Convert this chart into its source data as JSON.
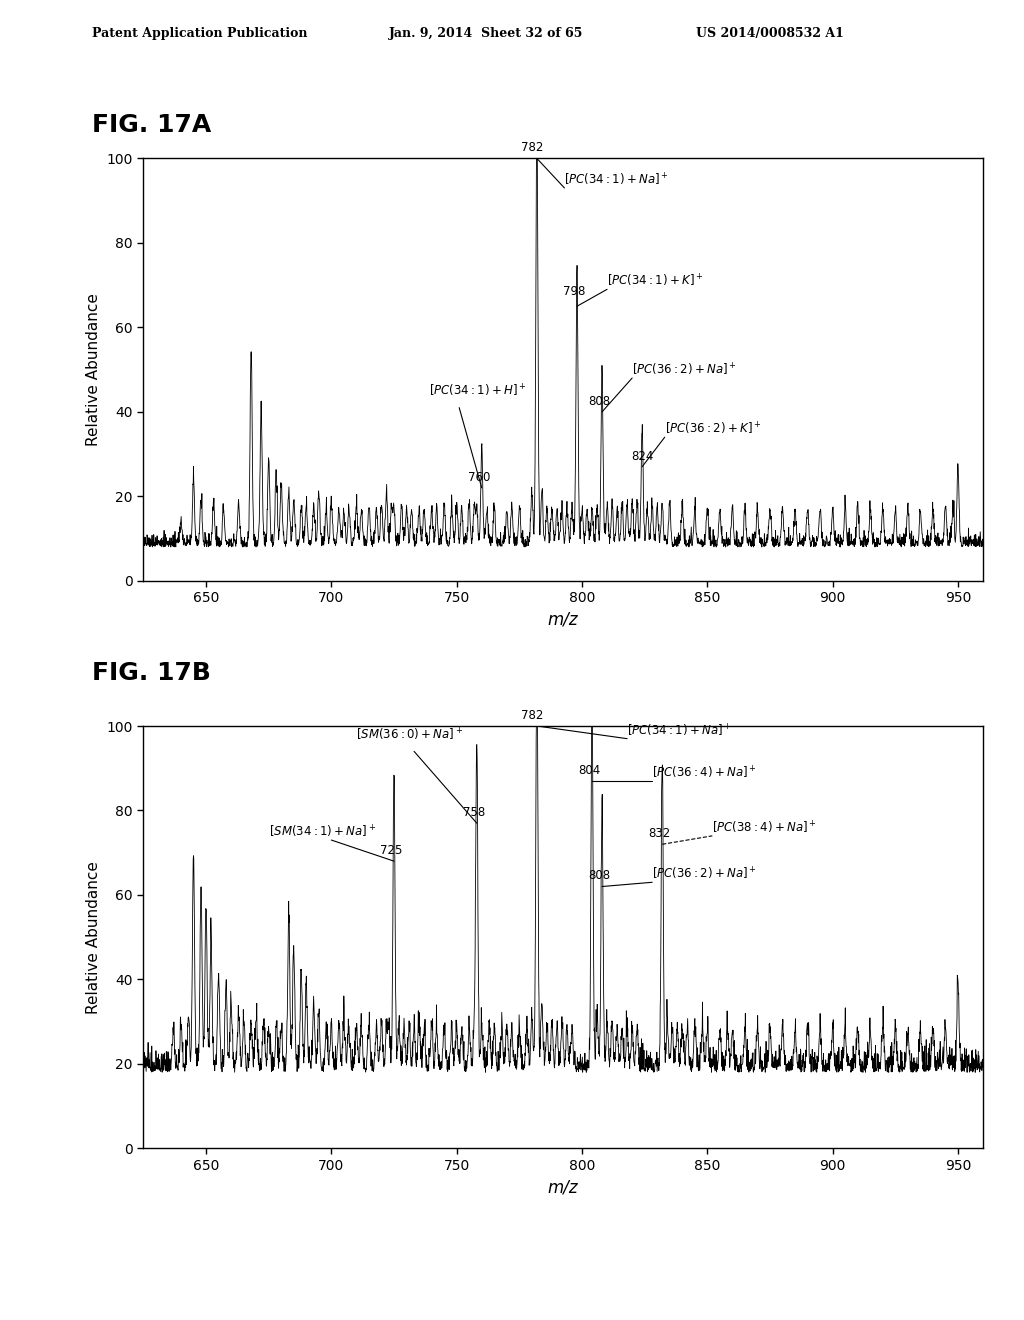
{
  "header_left": "Patent Application Publication",
  "header_mid": "Jan. 9, 2014  Sheet 32 of 65",
  "header_right": "US 2014/0008532 A1",
  "fig_label_A": "FIG. 17A",
  "fig_label_B": "FIG. 17B",
  "xlabel": "m/z",
  "ylabel": "Relative Abundance",
  "xlim": [
    625,
    960
  ],
  "ylim": [
    0,
    100
  ],
  "xticks": [
    650,
    700,
    750,
    800,
    850,
    900,
    950
  ],
  "yticks_A": [
    0,
    20,
    40,
    60,
    80,
    100
  ],
  "yticks_B": [
    0,
    20,
    40,
    60,
    80,
    100
  ],
  "background_color": "#ffffff",
  "spectrum_color": "#000000"
}
